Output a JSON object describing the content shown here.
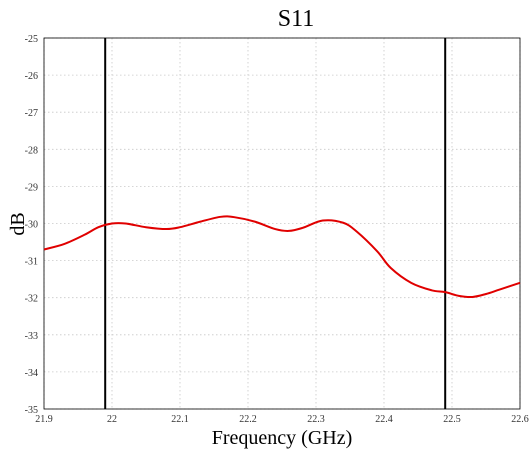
{
  "chart_data": {
    "type": "line",
    "title": "S11",
    "xlabel": "Frequency (GHz)",
    "ylabel": "dB",
    "xlim": [
      21.9,
      22.6
    ],
    "ylim": [
      -35,
      -25
    ],
    "grid": true,
    "x_ticks": [
      21.9,
      22.0,
      22.1,
      22.2,
      22.3,
      22.4,
      22.5,
      22.6
    ],
    "x_tick_labels": [
      "21.9",
      "22",
      "22.1",
      "22.2",
      "22.3",
      "22.4",
      "22.5",
      "22.6"
    ],
    "y_ticks": [
      -25,
      -26,
      -27,
      -28,
      -29,
      -30,
      -31,
      -32,
      -33,
      -34,
      -35
    ],
    "y_tick_labels": [
      "-25",
      "-26",
      "-27",
      "-28",
      "-29",
      "-30",
      "-31",
      "-32",
      "-33",
      "-34",
      "-35"
    ],
    "markers_x": [
      21.99,
      22.49
    ],
    "series": [
      {
        "color": "#e00000",
        "x": [
          21.9,
          21.93,
          21.96,
          21.98,
          22.0,
          22.02,
          22.05,
          22.08,
          22.1,
          22.13,
          22.16,
          22.18,
          22.21,
          22.24,
          22.26,
          22.28,
          22.31,
          22.34,
          22.36,
          22.39,
          22.41,
          22.44,
          22.47,
          22.49,
          22.51,
          22.53,
          22.55,
          22.57,
          22.6
        ],
        "values": [
          -30.7,
          -30.55,
          -30.3,
          -30.1,
          -30.0,
          -30.0,
          -30.1,
          -30.15,
          -30.1,
          -29.95,
          -29.82,
          -29.83,
          -29.95,
          -30.15,
          -30.2,
          -30.12,
          -29.92,
          -29.98,
          -30.22,
          -30.75,
          -31.2,
          -31.6,
          -31.8,
          -31.85,
          -31.95,
          -31.98,
          -31.9,
          -31.78,
          -31.6
        ]
      }
    ]
  }
}
